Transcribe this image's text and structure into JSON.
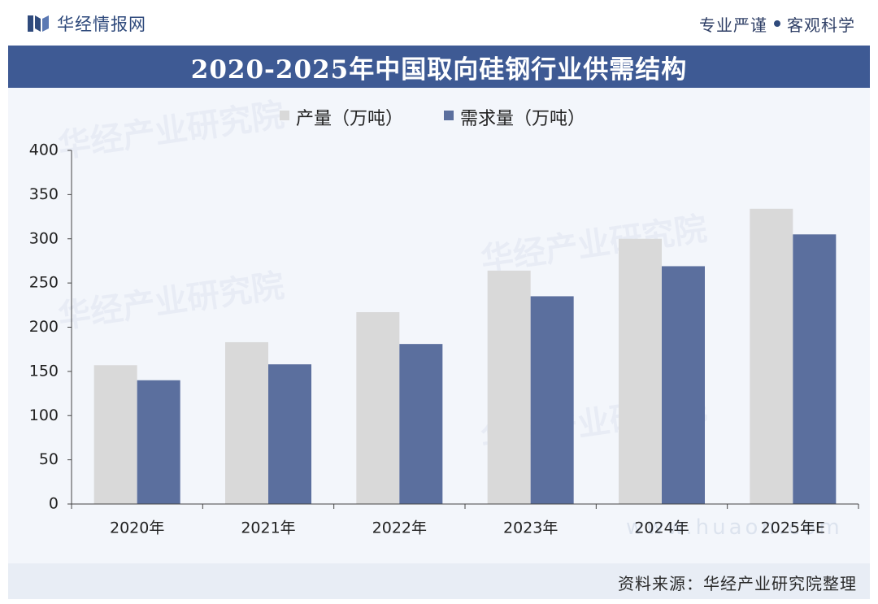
{
  "header": {
    "brand_name": "华经情报网",
    "slogan_left": "专业严谨",
    "slogan_right": "客观科学"
  },
  "watermark": {
    "text": "华经产业研究院",
    "url": "www.huaon.com"
  },
  "footer": {
    "source": "资料来源：华经产业研究院整理"
  },
  "colors": {
    "title_band": "#3e5a94",
    "production": "#d9d9d9",
    "demand": "#5b6f9e"
  },
  "chart_data": {
    "type": "bar",
    "title": "2020-2025年中国取向硅钢行业供需结构",
    "categories": [
      "2020年",
      "2021年",
      "2022年",
      "2023年",
      "2024年",
      "2025年E"
    ],
    "series": [
      {
        "name": "产量（万吨）",
        "values": [
          157,
          183,
          217,
          264,
          300,
          334
        ]
      },
      {
        "name": "需求量（万吨）",
        "values": [
          140,
          158,
          181,
          235,
          269,
          305
        ]
      }
    ],
    "y_ticks": [
      "0",
      "50",
      "100",
      "150",
      "200",
      "250",
      "300",
      "350",
      "400"
    ],
    "ylim": [
      0,
      400
    ],
    "xlabel": "",
    "ylabel": "",
    "legend_position": "top-center",
    "grid": false
  }
}
